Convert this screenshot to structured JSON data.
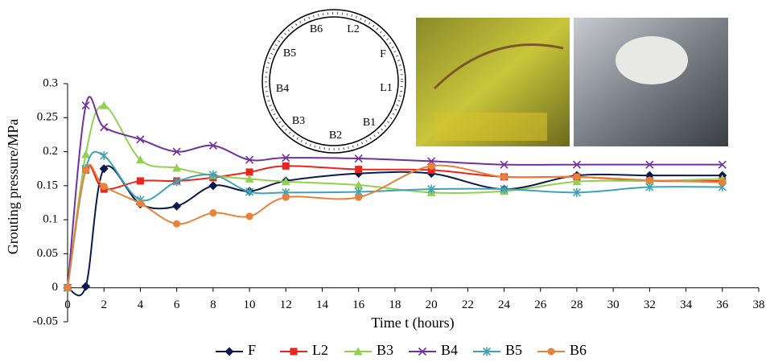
{
  "chart_data": {
    "type": "line",
    "x": [
      0,
      1,
      2,
      4,
      6,
      8,
      10,
      12,
      16,
      20,
      24,
      28,
      32,
      36
    ],
    "series": [
      {
        "name": "F",
        "color": "#0b1a4e",
        "marker": "diamond",
        "values": [
          0,
          0.002,
          0.175,
          0.123,
          0.12,
          0.15,
          0.142,
          0.157,
          0.168,
          0.168,
          0.145,
          0.165,
          0.165,
          0.165
        ]
      },
      {
        "name": "L2",
        "color": "#e8251f",
        "marker": "square",
        "values": [
          0,
          0.173,
          0.145,
          0.157,
          0.157,
          0.162,
          0.17,
          0.179,
          0.174,
          0.173,
          0.163,
          0.163,
          0.157,
          0.157
        ]
      },
      {
        "name": "B3",
        "color": "#92d050",
        "marker": "triangle",
        "values": [
          0,
          0.196,
          0.268,
          0.188,
          0.176,
          0.165,
          0.16,
          0.156,
          0.151,
          0.14,
          0.142,
          0.156,
          0.157,
          0.16
        ]
      },
      {
        "name": "B4",
        "color": "#7030a0",
        "marker": "x",
        "values": [
          0,
          0.268,
          0.236,
          0.218,
          0.2,
          0.209,
          0.188,
          0.191,
          0.19,
          0.186,
          0.181,
          0.181,
          0.181,
          0.181
        ]
      },
      {
        "name": "B5",
        "color": "#3fa3b5",
        "marker": "star",
        "values": [
          0,
          0.175,
          0.194,
          0.129,
          0.156,
          0.166,
          0.141,
          0.14,
          0.141,
          0.145,
          0.145,
          0.14,
          0.148,
          0.148
        ]
      },
      {
        "name": "B6",
        "color": "#e8823a",
        "marker": "circle",
        "values": [
          0,
          0.173,
          0.149,
          0.124,
          0.094,
          0.11,
          0.105,
          0.133,
          0.133,
          0.179,
          0.163,
          0.163,
          0.158,
          0.155
        ]
      }
    ],
    "x_label": "Time t (hours)",
    "y_label": "Grouting pressure/MPa",
    "xlim": [
      0,
      38
    ],
    "xticks": [
      0,
      2,
      4,
      6,
      8,
      10,
      12,
      14,
      16,
      18,
      20,
      22,
      24,
      26,
      28,
      30,
      32,
      34,
      36,
      38
    ],
    "ylim": [
      -0.05,
      0.3
    ],
    "yticks": [
      -0.05,
      0,
      0.05,
      0.1,
      0.15,
      0.2,
      0.25,
      0.3
    ],
    "legend": "bottom",
    "annotations": [
      "B6",
      "L2",
      "F",
      "L1",
      "B1",
      "B2",
      "B3",
      "B4",
      "B5"
    ]
  }
}
